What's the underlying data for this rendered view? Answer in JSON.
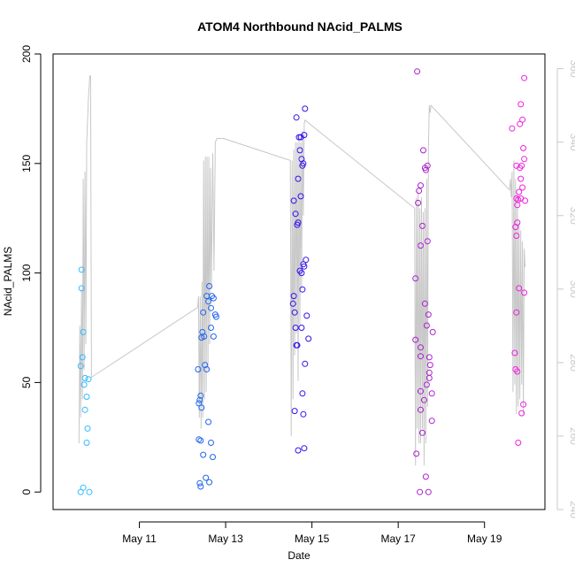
{
  "chart_data": {
    "type": "scatter",
    "title": "ATOM4 Northbound NAcid_PALMS",
    "xlabel": "Date",
    "ylabel": "NAcid_PALMS",
    "x_unit": "days (May)",
    "xlim": [
      9.0,
      20.4
    ],
    "ylim": [
      -8,
      200
    ],
    "x_ticks": [
      {
        "value": 11,
        "label": "May 11"
      },
      {
        "value": 13,
        "label": "May 13"
      },
      {
        "value": 15,
        "label": "May 15"
      },
      {
        "value": 17,
        "label": "May 17"
      },
      {
        "value": 19,
        "label": "May 19"
      }
    ],
    "y_ticks": [
      0,
      50,
      100,
      150,
      200
    ],
    "y2_ticks": [
      240,
      260,
      280,
      300,
      320,
      340,
      360
    ],
    "y2lim": [
      240,
      364
    ],
    "colors": {
      "flight1": "#33bbff",
      "flight2": "#2266ee",
      "flight3": "#3311ee",
      "flight4": "#aa22cc",
      "flight5": "#ee22dd",
      "overlay": "#c8c8c8"
    },
    "series": [
      {
        "name": "flight1",
        "color_key": "flight1",
        "points": [
          [
            9.66,
            101.5
          ],
          [
            9.66,
            93
          ],
          [
            9.7,
            73
          ],
          [
            9.68,
            61.5
          ],
          [
            9.64,
            57.5
          ],
          [
            9.74,
            52
          ],
          [
            9.82,
            51.5
          ],
          [
            9.72,
            49
          ],
          [
            9.78,
            43.5
          ],
          [
            9.74,
            37.5
          ],
          [
            9.8,
            29
          ],
          [
            9.78,
            22.5
          ],
          [
            9.7,
            2
          ],
          [
            9.64,
            0
          ],
          [
            9.84,
            0
          ]
        ]
      },
      {
        "name": "flight2",
        "color_key": "flight2",
        "points": [
          [
            12.62,
            94
          ],
          [
            12.56,
            89.5
          ],
          [
            12.68,
            89.5
          ],
          [
            12.72,
            88.5
          ],
          [
            12.6,
            87
          ],
          [
            12.66,
            84
          ],
          [
            12.48,
            82
          ],
          [
            12.76,
            81
          ],
          [
            12.78,
            80
          ],
          [
            12.46,
            73
          ],
          [
            12.5,
            71
          ],
          [
            12.44,
            70.5
          ],
          [
            12.72,
            71
          ],
          [
            12.66,
            75
          ],
          [
            12.52,
            58
          ],
          [
            12.36,
            56
          ],
          [
            12.56,
            56
          ],
          [
            12.42,
            44
          ],
          [
            12.4,
            42
          ],
          [
            12.38,
            40.5
          ],
          [
            12.44,
            38.5
          ],
          [
            12.6,
            32
          ],
          [
            12.42,
            23.5
          ],
          [
            12.38,
            24
          ],
          [
            12.66,
            22.5
          ],
          [
            12.48,
            17
          ],
          [
            12.7,
            16
          ],
          [
            12.54,
            6.5
          ],
          [
            12.4,
            4
          ],
          [
            12.62,
            4.5
          ],
          [
            12.42,
            2.5
          ]
        ]
      },
      {
        "name": "flight3",
        "color_key": "flight3",
        "points": [
          [
            14.64,
            171
          ],
          [
            14.84,
            175
          ],
          [
            14.74,
            162
          ],
          [
            14.7,
            162
          ],
          [
            14.72,
            156
          ],
          [
            14.76,
            152
          ],
          [
            14.8,
            150
          ],
          [
            14.82,
            163
          ],
          [
            14.78,
            149
          ],
          [
            14.68,
            143
          ],
          [
            14.74,
            135
          ],
          [
            14.58,
            133
          ],
          [
            14.62,
            127
          ],
          [
            14.68,
            123
          ],
          [
            14.66,
            122
          ],
          [
            14.86,
            106
          ],
          [
            14.8,
            104
          ],
          [
            14.82,
            103
          ],
          [
            14.72,
            101
          ],
          [
            14.76,
            100
          ],
          [
            14.78,
            92.5
          ],
          [
            14.58,
            89.5
          ],
          [
            14.56,
            86
          ],
          [
            14.6,
            82
          ],
          [
            14.62,
            75
          ],
          [
            14.76,
            75
          ],
          [
            14.88,
            80.5
          ],
          [
            14.92,
            70
          ],
          [
            14.64,
            67
          ],
          [
            14.66,
            67
          ],
          [
            14.84,
            58.5
          ],
          [
            14.78,
            45
          ],
          [
            14.6,
            37
          ],
          [
            14.8,
            35.5
          ],
          [
            14.68,
            19
          ],
          [
            14.82,
            20
          ]
        ]
      },
      {
        "name": "flight4",
        "color_key": "flight4",
        "points": [
          [
            17.44,
            192
          ],
          [
            17.58,
            156
          ],
          [
            17.68,
            149
          ],
          [
            17.64,
            147
          ],
          [
            17.62,
            148
          ],
          [
            17.52,
            140
          ],
          [
            17.48,
            137.5
          ],
          [
            17.46,
            132
          ],
          [
            17.56,
            121.5
          ],
          [
            17.52,
            112.5
          ],
          [
            17.68,
            114.5
          ],
          [
            17.4,
            97.5
          ],
          [
            17.62,
            86
          ],
          [
            17.7,
            81
          ],
          [
            17.66,
            76
          ],
          [
            17.8,
            73
          ],
          [
            17.4,
            69.5
          ],
          [
            17.52,
            66
          ],
          [
            17.52,
            62
          ],
          [
            17.72,
            61.5
          ],
          [
            17.74,
            58
          ],
          [
            17.72,
            54.5
          ],
          [
            17.72,
            52
          ],
          [
            17.66,
            49
          ],
          [
            17.52,
            46
          ],
          [
            17.78,
            45
          ],
          [
            17.6,
            42
          ],
          [
            17.52,
            37.5
          ],
          [
            17.78,
            32.5
          ],
          [
            17.56,
            27
          ],
          [
            17.42,
            17.5
          ],
          [
            17.64,
            7
          ],
          [
            17.5,
            0
          ],
          [
            17.7,
            0
          ]
        ]
      },
      {
        "name": "flight5",
        "color_key": "flight5",
        "points": [
          [
            19.92,
            189
          ],
          [
            19.84,
            177
          ],
          [
            19.88,
            170
          ],
          [
            19.82,
            168
          ],
          [
            19.64,
            166
          ],
          [
            19.9,
            157
          ],
          [
            19.92,
            152
          ],
          [
            19.82,
            148
          ],
          [
            19.74,
            149
          ],
          [
            19.86,
            149
          ],
          [
            19.84,
            143
          ],
          [
            19.88,
            139
          ],
          [
            19.8,
            137
          ],
          [
            19.84,
            134
          ],
          [
            19.74,
            134
          ],
          [
            19.76,
            131
          ],
          [
            19.94,
            133
          ],
          [
            19.78,
            133.5
          ],
          [
            19.76,
            123
          ],
          [
            19.72,
            121
          ],
          [
            19.74,
            117
          ],
          [
            19.8,
            93
          ],
          [
            19.92,
            91
          ],
          [
            19.74,
            82
          ],
          [
            19.7,
            63.5
          ],
          [
            19.72,
            56
          ],
          [
            19.76,
            55
          ],
          [
            19.9,
            40
          ],
          [
            19.86,
            36
          ],
          [
            19.78,
            22.5
          ]
        ]
      }
    ],
    "overlay_line": {
      "name": "right-axis series",
      "axis": "y2",
      "points": [
        [
          9.6,
          258
        ],
        [
          9.62,
          290
        ],
        [
          9.64,
          265
        ],
        [
          9.66,
          300
        ],
        [
          9.68,
          270
        ],
        [
          9.7,
          330
        ],
        [
          9.72,
          278
        ],
        [
          9.74,
          332
        ],
        [
          9.76,
          285
        ],
        [
          9.78,
          340
        ],
        [
          9.82,
          352
        ],
        [
          9.85,
          358
        ],
        [
          9.87,
          358
        ],
        [
          9.89,
          276
        ],
        [
          12.35,
          295
        ],
        [
          12.37,
          298
        ],
        [
          12.39,
          265
        ],
        [
          12.41,
          298
        ],
        [
          12.43,
          262
        ],
        [
          12.45,
          302
        ],
        [
          12.47,
          265
        ],
        [
          12.49,
          335
        ],
        [
          12.51,
          270
        ],
        [
          12.53,
          336
        ],
        [
          12.55,
          272
        ],
        [
          12.57,
          336
        ],
        [
          12.59,
          278
        ],
        [
          12.61,
          336
        ],
        [
          12.63,
          285
        ],
        [
          12.65,
          333
        ],
        [
          12.67,
          300
        ],
        [
          12.7,
          337
        ],
        [
          12.73,
          305
        ],
        [
          12.76,
          340
        ],
        [
          12.8,
          341
        ],
        [
          12.95,
          341
        ],
        [
          14.5,
          335
        ],
        [
          14.52,
          260
        ],
        [
          14.54,
          335
        ],
        [
          14.56,
          270
        ],
        [
          14.58,
          338
        ],
        [
          14.6,
          282
        ],
        [
          14.62,
          340
        ],
        [
          14.64,
          288
        ],
        [
          14.66,
          340
        ],
        [
          14.68,
          275
        ],
        [
          14.7,
          342
        ],
        [
          14.72,
          290
        ],
        [
          14.74,
          340
        ],
        [
          14.76,
          300
        ],
        [
          14.78,
          343
        ],
        [
          14.8,
          320
        ],
        [
          14.82,
          345
        ],
        [
          14.84,
          346
        ],
        [
          17.38,
          322
        ],
        [
          17.4,
          252
        ],
        [
          17.42,
          325
        ],
        [
          17.44,
          262
        ],
        [
          17.46,
          327
        ],
        [
          17.48,
          258
        ],
        [
          17.5,
          322
        ],
        [
          17.52,
          258
        ],
        [
          17.54,
          325
        ],
        [
          17.56,
          262
        ],
        [
          17.58,
          321
        ],
        [
          17.6,
          252
        ],
        [
          17.62,
          322
        ],
        [
          17.64,
          258
        ],
        [
          17.66,
          330
        ],
        [
          17.68,
          268
        ],
        [
          17.7,
          338
        ],
        [
          17.72,
          350
        ],
        [
          17.74,
          348
        ],
        [
          17.76,
          350
        ],
        [
          19.58,
          327
        ],
        [
          19.6,
          330
        ],
        [
          19.62,
          325
        ],
        [
          19.64,
          332
        ],
        [
          19.66,
          272
        ],
        [
          19.68,
          335
        ],
        [
          19.7,
          274
        ],
        [
          19.72,
          330
        ],
        [
          19.74,
          266
        ],
        [
          19.76,
          326
        ],
        [
          19.78,
          268
        ],
        [
          19.8,
          318
        ],
        [
          19.82,
          270
        ],
        [
          19.84,
          316
        ],
        [
          19.86,
          274
        ],
        [
          19.88,
          313
        ],
        [
          19.9,
          266
        ],
        [
          19.92,
          311
        ],
        [
          19.94,
          306
        ]
      ]
    }
  }
}
